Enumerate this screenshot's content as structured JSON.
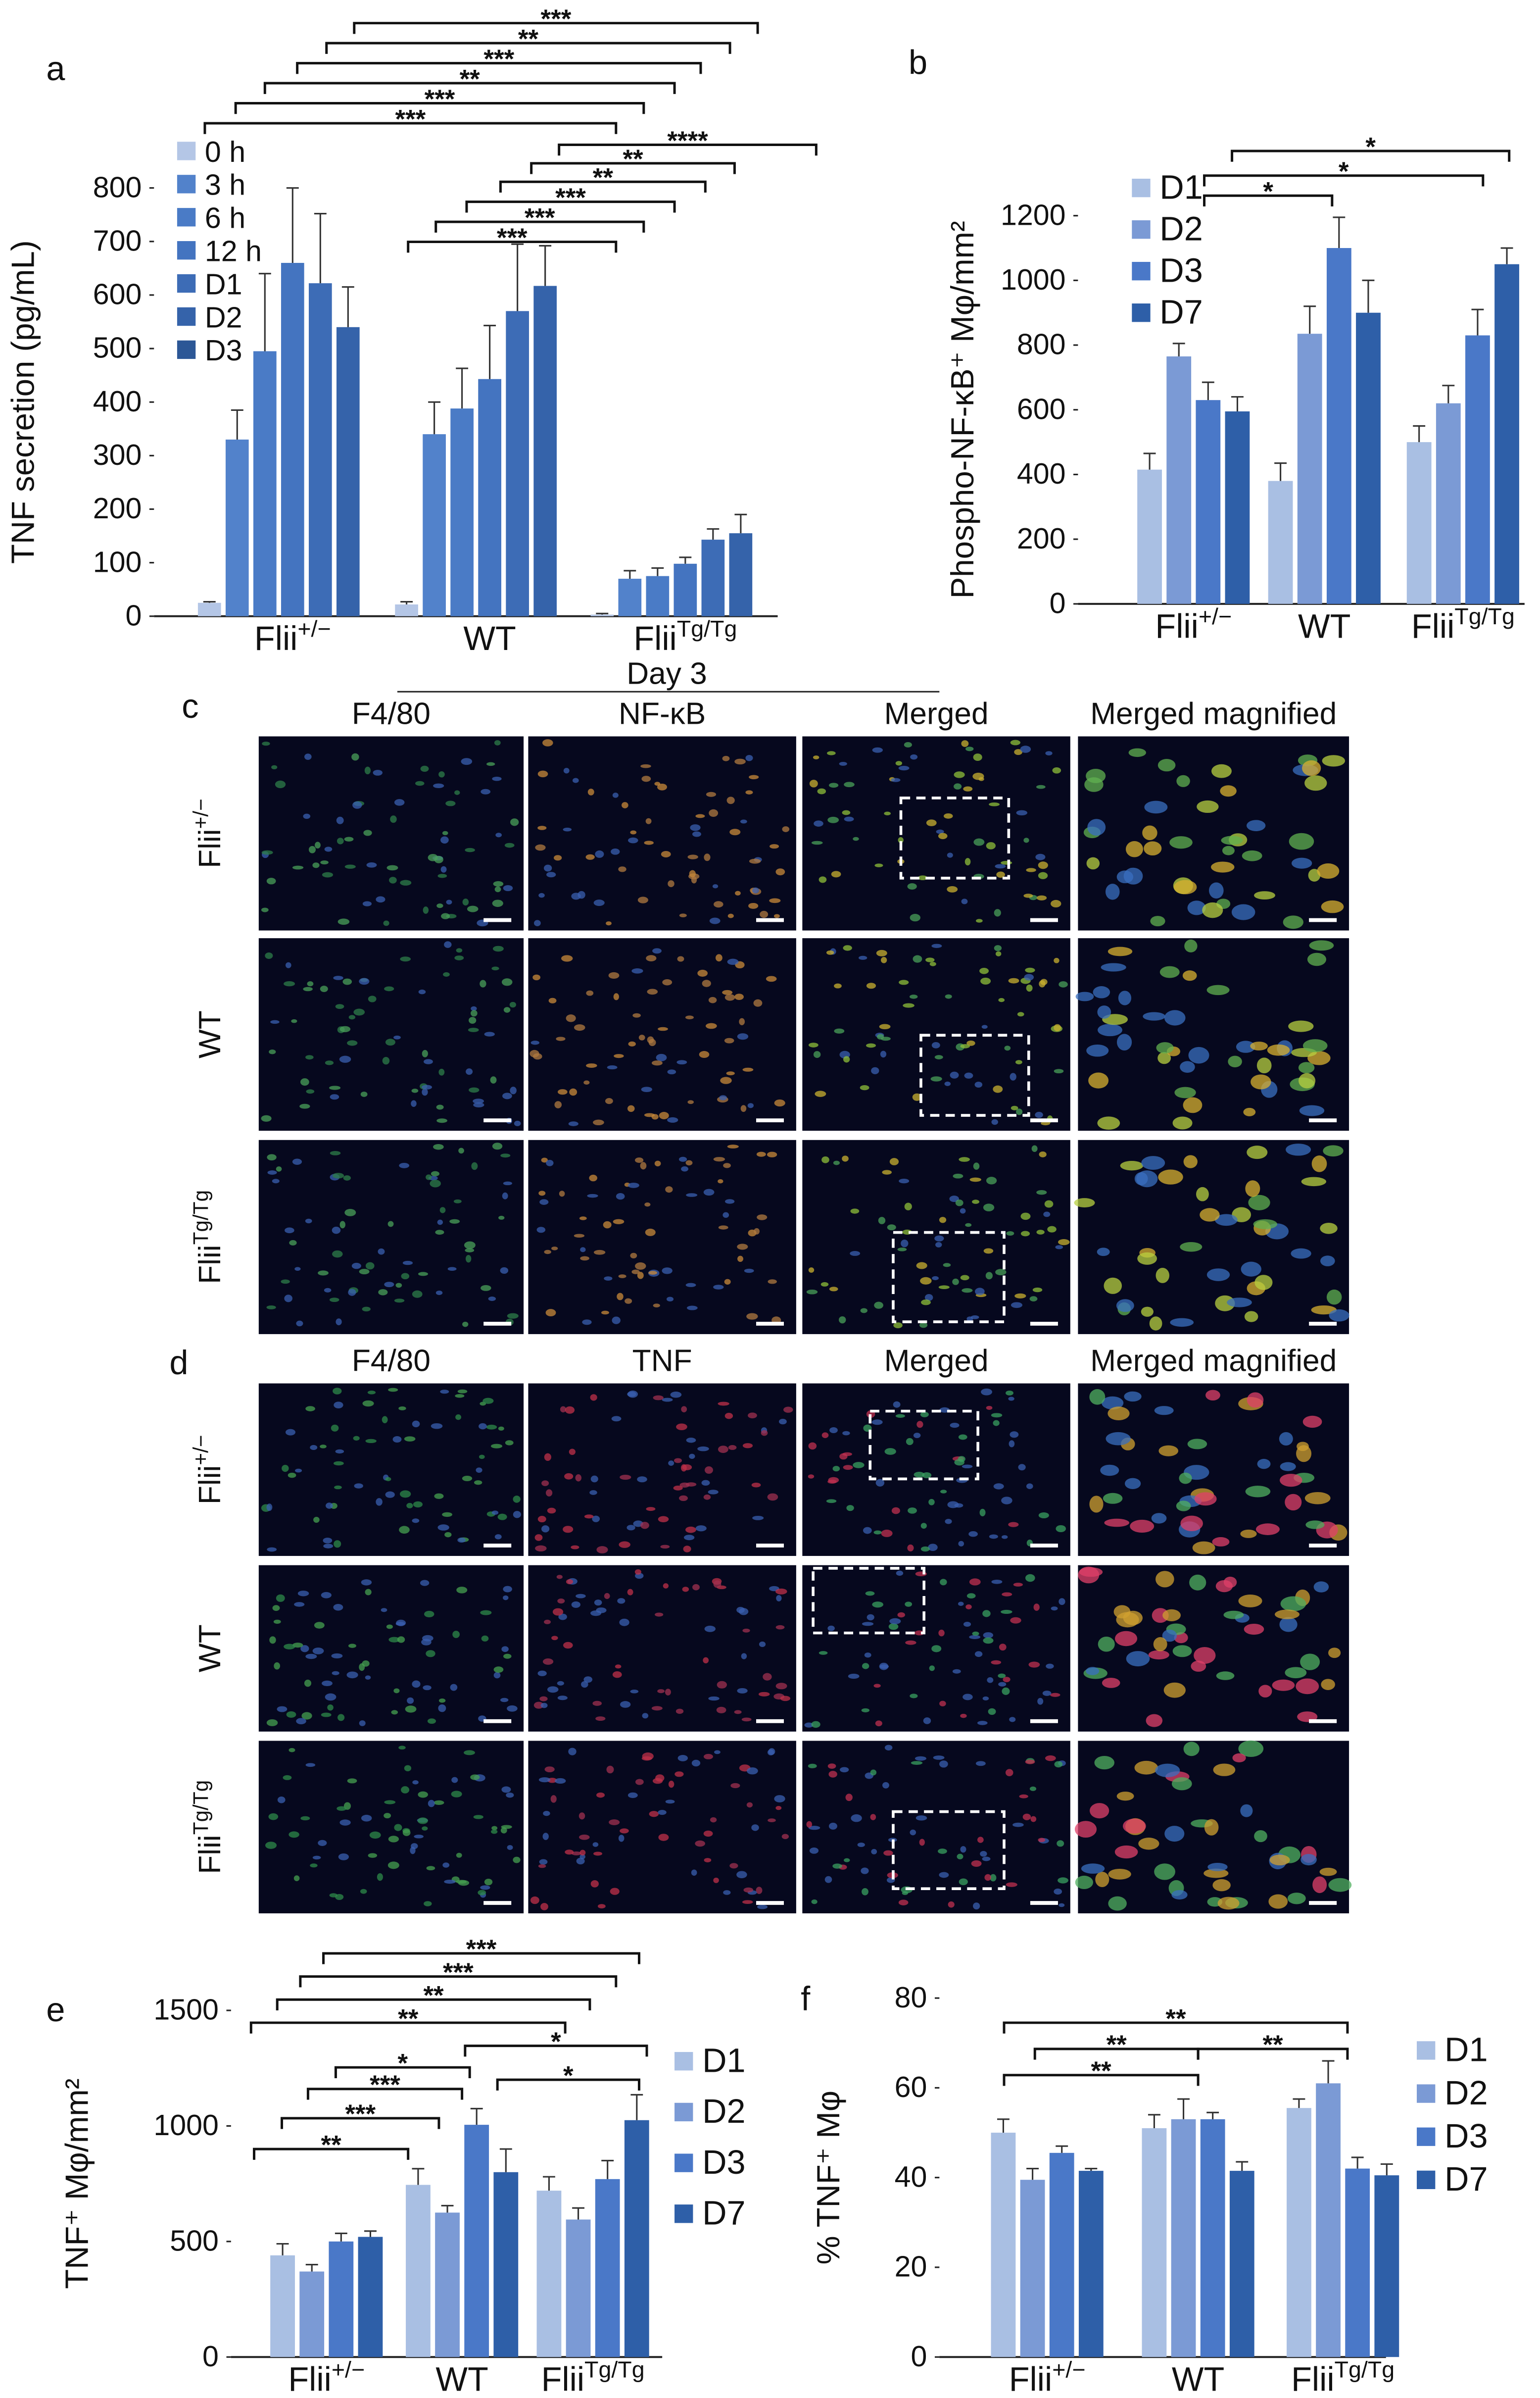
{
  "chart_data": [
    {
      "type": "bar",
      "panel_label": "a",
      "y_label": "TNF secretion (pg/mL)",
      "categories": [
        "Flii+/−",
        "WT",
        "FliiTg/Tg"
      ],
      "series": [
        {
          "name": "0 h",
          "color": "#b4c6e6",
          "values": [
            25,
            22,
            3
          ],
          "errors": [
            2,
            5,
            2
          ]
        },
        {
          "name": "3 h",
          "color": "#5282cb",
          "values": [
            330,
            340,
            70
          ],
          "errors": [
            55,
            60,
            15
          ]
        },
        {
          "name": "6 h",
          "color": "#4a7bc6",
          "values": [
            495,
            388,
            75
          ],
          "errors": [
            145,
            75,
            15
          ]
        },
        {
          "name": "12 h",
          "color": "#4474c0",
          "values": [
            660,
            443,
            98
          ],
          "errors": [
            140,
            100,
            12
          ]
        },
        {
          "name": "D1",
          "color": "#3d6cb6",
          "values": [
            622,
            570,
            143
          ],
          "errors": [
            130,
            125,
            20
          ]
        },
        {
          "name": "D2",
          "color": "#3563aa",
          "values": [
            540,
            617,
            155
          ],
          "errors": [
            75,
            75,
            35
          ]
        },
        {
          "name": "D3",
          "color": "#2c5796",
          "values": [
            null,
            null,
            null
          ],
          "errors": [
            null,
            null,
            null
          ]
        }
      ],
      "ylim": [
        0,
        800
      ],
      "yticks": [
        0,
        100,
        200,
        300,
        400,
        500,
        600,
        700,
        800
      ],
      "significance": [
        "***",
        "**",
        "***",
        "**",
        "***",
        "***",
        "****",
        "**",
        "**",
        "***",
        "***",
        "***"
      ]
    },
    {
      "type": "bar",
      "panel_label": "b",
      "y_label": "Phospho-NF-κB⁺ Mφ/mm²",
      "categories": [
        "Flii+/−",
        "WT",
        "FliiTg/Tg"
      ],
      "series": [
        {
          "name": "D1",
          "color": "#a9bfe3",
          "values": [
            415,
            380,
            500
          ],
          "errors": [
            50,
            55,
            50
          ]
        },
        {
          "name": "D2",
          "color": "#7b9ad5",
          "values": [
            765,
            835,
            620
          ],
          "errors": [
            40,
            85,
            55
          ]
        },
        {
          "name": "D3",
          "color": "#4a78c8",
          "values": [
            630,
            1100,
            830
          ],
          "errors": [
            55,
            95,
            80
          ]
        },
        {
          "name": "D7",
          "color": "#2e5fa8",
          "values": [
            595,
            900,
            1050
          ],
          "errors": [
            45,
            100,
            50
          ]
        }
      ],
      "ylim": [
        0,
        1200
      ],
      "yticks": [
        0,
        200,
        400,
        600,
        800,
        1000,
        1200
      ],
      "significance": [
        "*",
        "*",
        "*"
      ]
    },
    {
      "type": "bar",
      "panel_label": "e",
      "y_label": "TNF⁺ Mφ/mm²",
      "categories": [
        "Flii+/−",
        "WT",
        "FliiTg/Tg"
      ],
      "series": [
        {
          "name": "D1",
          "color": "#a9bfe3",
          "values": [
            440,
            745,
            720
          ],
          "errors": [
            50,
            70,
            60
          ]
        },
        {
          "name": "D2",
          "color": "#7b9ad5",
          "values": [
            370,
            625,
            595
          ],
          "errors": [
            30,
            30,
            50
          ]
        },
        {
          "name": "D3",
          "color": "#4a78c8",
          "values": [
            500,
            1005,
            770
          ],
          "errors": [
            35,
            70,
            80
          ]
        },
        {
          "name": "D7",
          "color": "#2e5fa8",
          "values": [
            520,
            800,
            1025
          ],
          "errors": [
            25,
            100,
            110
          ]
        }
      ],
      "ylim": [
        0,
        1500
      ],
      "yticks": [
        0,
        500,
        1000,
        1500
      ],
      "significance": [
        "***",
        "***",
        "**",
        "**",
        "*",
        "*",
        "***",
        "*",
        "***",
        "**"
      ]
    },
    {
      "type": "bar",
      "panel_label": "f",
      "y_label": "% TNF⁺ Mφ",
      "categories": [
        "Flii+/−",
        "WT",
        "FliiTg/Tg"
      ],
      "series": [
        {
          "name": "D1",
          "color": "#a9bfe3",
          "values": [
            50,
            51,
            55.5
          ],
          "errors": [
            3,
            3,
            2
          ]
        },
        {
          "name": "D2",
          "color": "#7b9ad5",
          "values": [
            39.5,
            53,
            61
          ],
          "errors": [
            2.5,
            4.5,
            5
          ]
        },
        {
          "name": "D3",
          "color": "#4a78c8",
          "values": [
            45.5,
            53,
            42
          ],
          "errors": [
            1.5,
            1.5,
            2.5
          ]
        },
        {
          "name": "D7",
          "color": "#2e5fa8",
          "values": [
            41.5,
            41.5,
            40.5
          ],
          "errors": [
            0.5,
            2,
            2.5
          ]
        }
      ],
      "ylim": [
        0,
        80
      ],
      "yticks": [
        0,
        20,
        40,
        60,
        80
      ],
      "significance": [
        "**",
        "**",
        "**",
        "**"
      ]
    }
  ],
  "figure_panels": [
    {
      "panel_label": "c",
      "group_header": "Day 3",
      "column_headers": [
        "F4/80",
        "NF-κB",
        "Merged",
        "Merged magnified"
      ],
      "row_labels": [
        "Flii+/−",
        "WT",
        "FliiTg/Tg"
      ]
    },
    {
      "panel_label": "d",
      "column_headers": [
        "F4/80",
        "TNF",
        "Merged",
        "Merged magnified"
      ],
      "row_labels": [
        "Flii+/−",
        "WT",
        "FliiTg/Tg"
      ]
    }
  ]
}
